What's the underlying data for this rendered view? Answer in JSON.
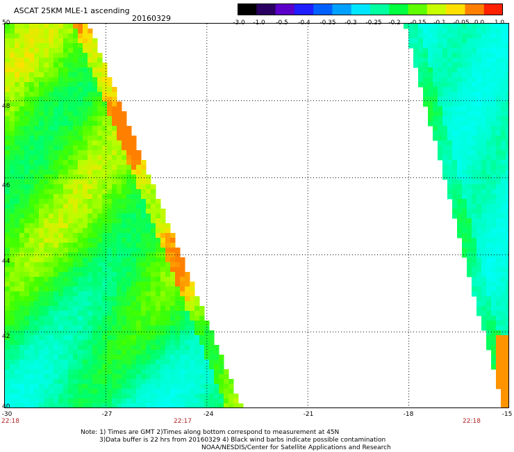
{
  "title": "ASCAT 25KM MLE-1 ascending",
  "date": "20160329",
  "colorbar": {
    "labels": [
      "-3.0",
      "-1.0",
      "-0.5",
      "-0.4",
      "-0.35",
      "-0.3",
      "-0.25",
      "-0.2",
      "-0.15",
      "-0.1",
      "-0.05",
      "0.0",
      "1.0"
    ],
    "colors": [
      "#000000",
      "#2a0060",
      "#5a00c8",
      "#1e1eff",
      "#0060ff",
      "#00a0ff",
      "#00e6ff",
      "#00ffa0",
      "#00ff40",
      "#60ff00",
      "#c8ff00",
      "#ffe000",
      "#ff8000",
      "#ff2000"
    ]
  },
  "axes": {
    "lat_labels": [
      "50",
      "48",
      "46",
      "44",
      "42",
      "40"
    ],
    "lon_labels": [
      "-30",
      "-27",
      "-24",
      "-21",
      "-18",
      "-15"
    ],
    "time_labels": [
      "22:18",
      "22:17",
      "22:18"
    ]
  },
  "map": {
    "lon_range": [
      -30,
      -15
    ],
    "lat_range": [
      40,
      50
    ],
    "grid_lons": [
      -27,
      -24,
      -21,
      -18
    ],
    "grid_lats": [
      48,
      46,
      44,
      42
    ],
    "grid": true
  },
  "notes": [
    "Note: 1) Times are GMT 2)Times along bottom correspond to measurement at 45N",
    "3)Data buffer is 22 hrs from 20160329 4) Black wind barbs indicate possible contamination",
    "NOAA/NESDIS/Center for Satellite Applications and Research"
  ]
}
